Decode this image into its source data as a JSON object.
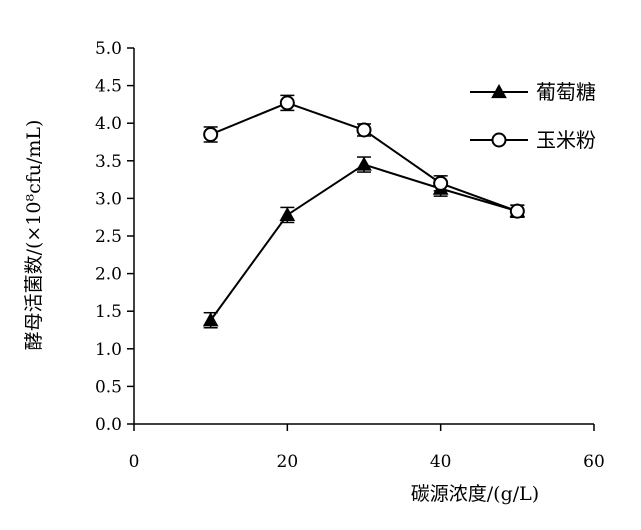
{
  "chart_data": {
    "type": "line",
    "title": "",
    "xlabel": "碳源浓度/(g/L)",
    "ylabel": "酵母活菌数/(×10⁸cfu/mL)",
    "xlim": [
      0,
      60
    ],
    "ylim": [
      0,
      5.0
    ],
    "x_ticks": [
      "0",
      "20",
      "40",
      "60"
    ],
    "y_ticks": [
      "0.0",
      "0.5",
      "1.0",
      "1.5",
      "2.0",
      "2.5",
      "3.0",
      "3.5",
      "4.0",
      "4.5",
      "5.0"
    ],
    "grid": false,
    "legend_position": "top-right",
    "x": [
      10,
      20,
      30,
      40,
      50
    ],
    "series": [
      {
        "name": "葡萄糖",
        "marker": "triangle-filled",
        "values": [
          1.38,
          2.78,
          3.45,
          3.13,
          2.83
        ],
        "errors": [
          0.1,
          0.1,
          0.1,
          0.1,
          0.08
        ]
      },
      {
        "name": "玉米粉",
        "marker": "circle-open",
        "values": [
          3.85,
          4.27,
          3.91,
          3.2,
          2.83
        ],
        "errors": [
          0.1,
          0.1,
          0.08,
          0.1,
          0.08
        ]
      }
    ],
    "line_color": "#000000"
  }
}
